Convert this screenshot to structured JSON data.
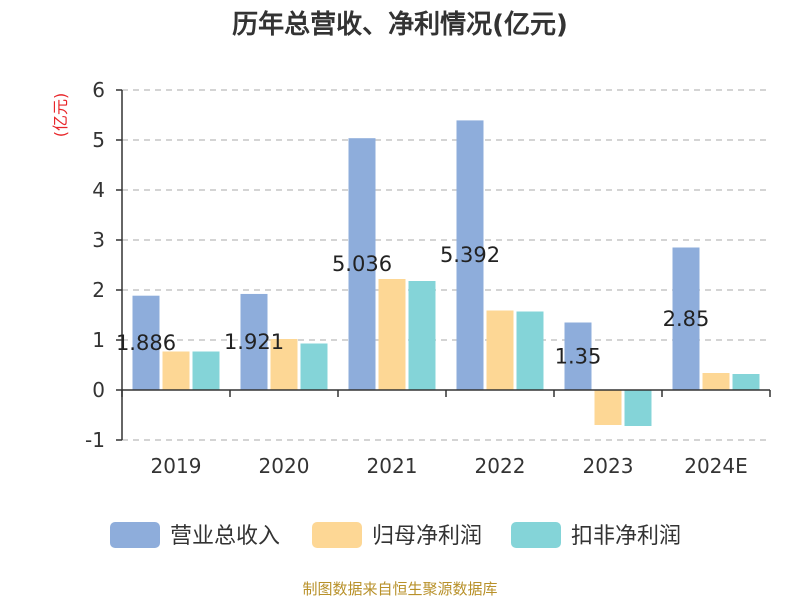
{
  "chart_data": {
    "type": "bar",
    "title": "历年总营收、净利情况(亿元)",
    "ylabel": "(亿元)",
    "categories": [
      "2019",
      "2020",
      "2021",
      "2022",
      "2023",
      "2024E"
    ],
    "series": [
      {
        "name": "营业总收入",
        "color": "#8eaddb",
        "values": [
          1.886,
          1.921,
          5.036,
          5.392,
          1.35,
          2.85
        ]
      },
      {
        "name": "归母净利润",
        "color": "#fdd795",
        "values": [
          0.77,
          1.02,
          2.22,
          1.59,
          -0.7,
          0.34
        ]
      },
      {
        "name": "扣非净利润",
        "color": "#84d4d8",
        "values": [
          0.77,
          0.93,
          2.18,
          1.57,
          -0.72,
          0.32
        ]
      }
    ],
    "data_labels": [
      "1.886",
      "1.921",
      "5.036",
      "5.392",
      "1.35",
      "2.85"
    ],
    "yticks": [
      "6",
      "5",
      "4",
      "3",
      "2",
      "1",
      "0",
      "-1"
    ],
    "ylim": [
      -1,
      6
    ],
    "grid": true,
    "legend_position": "bottom"
  },
  "source": "制图数据来自恒生聚源数据库"
}
